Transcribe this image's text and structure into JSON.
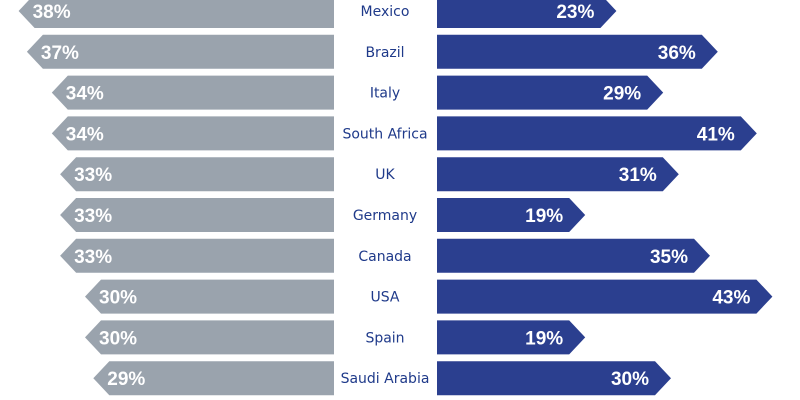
{
  "chart_data": {
    "type": "bar",
    "layout": "diverging-horizontal",
    "categories": [
      "Mexico",
      "Brazil",
      "Italy",
      "South Africa",
      "UK",
      "Germany",
      "Canada",
      "USA",
      "Spain",
      "Saudi Arabia"
    ],
    "series": [
      {
        "side": "left",
        "color": "#9aa3ad",
        "values": [
          38,
          37,
          34,
          34,
          33,
          33,
          33,
          30,
          30,
          29
        ],
        "labels": [
          "38%",
          "37%",
          "34%",
          "34%",
          "33%",
          "33%",
          "33%",
          "30%",
          "30%",
          "29%"
        ]
      },
      {
        "side": "right",
        "color": "#2b3f8f",
        "values": [
          23,
          36,
          29,
          41,
          31,
          19,
          35,
          43,
          19,
          30
        ],
        "labels": [
          "23%",
          "36%",
          "29%",
          "41%",
          "31%",
          "19%",
          "35%",
          "43%",
          "19%",
          "30%"
        ]
      }
    ],
    "category_color": "#1f3a8a",
    "grid": false,
    "legend": "none"
  }
}
